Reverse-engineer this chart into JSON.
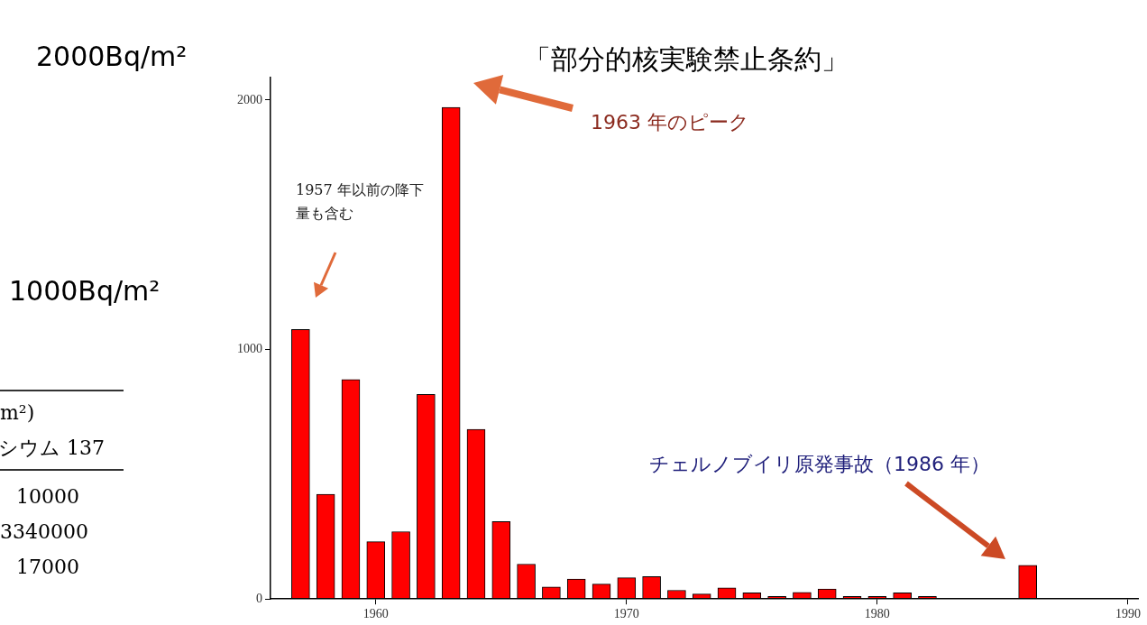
{
  "chart_data": {
    "type": "bar",
    "title": "「部分的核実験禁止条約」",
    "x": [
      1957,
      1958,
      1959,
      1960,
      1961,
      1962,
      1963,
      1964,
      1965,
      1966,
      1967,
      1968,
      1969,
      1970,
      1971,
      1972,
      1973,
      1974,
      1975,
      1976,
      1977,
      1978,
      1979,
      1980,
      1981,
      1982,
      1983,
      1984,
      1985,
      1986
    ],
    "values": [
      1080,
      420,
      880,
      230,
      270,
      820,
      1970,
      680,
      310,
      140,
      48,
      80,
      60,
      85,
      90,
      35,
      20,
      45,
      25,
      10,
      27,
      40,
      10,
      10,
      25,
      10,
      null,
      null,
      null,
      135
    ],
    "color": "#ff0000",
    "xlim": [
      1955.8,
      1990.4
    ],
    "xticks": [
      1960,
      1970,
      1980,
      1990
    ],
    "ylim": [
      0,
      2090
    ],
    "yticks": [
      0,
      1000,
      2000
    ],
    "grid": false,
    "legend": false,
    "annotations": [
      "1957 年以前の降下量も含む",
      "1963 年のピーク",
      "チェルノブイリ原発事故（1986 年）",
      "2000Bq/m²",
      "1000Bq/m²",
      "m²)",
      "シウム 137",
      "10000",
      "3340000",
      "17000"
    ]
  }
}
